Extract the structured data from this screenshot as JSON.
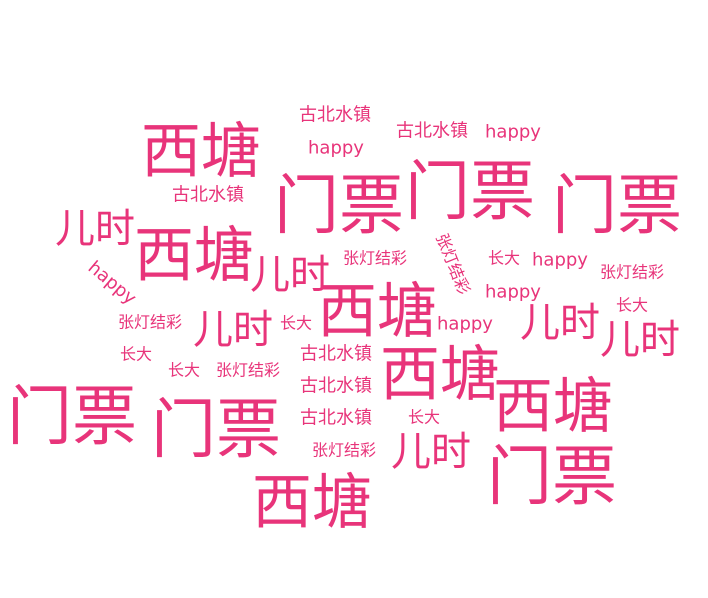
{
  "chart_data": {
    "type": "wordcloud",
    "color": "#e8347a",
    "words": [
      {
        "text": "西塘",
        "weight": 60
      },
      {
        "text": "西塘",
        "weight": 60
      },
      {
        "text": "西塘",
        "weight": 60
      },
      {
        "text": "西塘",
        "weight": 60
      },
      {
        "text": "西塘",
        "weight": 60
      },
      {
        "text": "西塘",
        "weight": 60
      },
      {
        "text": "门票",
        "weight": 65
      },
      {
        "text": "门票",
        "weight": 65
      },
      {
        "text": "门票",
        "weight": 65
      },
      {
        "text": "门票",
        "weight": 65
      },
      {
        "text": "门票",
        "weight": 65
      },
      {
        "text": "门票",
        "weight": 65
      },
      {
        "text": "儿时",
        "weight": 40
      },
      {
        "text": "儿时",
        "weight": 40
      },
      {
        "text": "儿时",
        "weight": 40
      },
      {
        "text": "儿时",
        "weight": 40
      },
      {
        "text": "儿时",
        "weight": 40
      },
      {
        "text": "儿时",
        "weight": 40
      },
      {
        "text": "古北水镇",
        "weight": 18
      },
      {
        "text": "古北水镇",
        "weight": 18
      },
      {
        "text": "古北水镇",
        "weight": 18
      },
      {
        "text": "古北水镇",
        "weight": 18
      },
      {
        "text": "古北水镇",
        "weight": 18
      },
      {
        "text": "古北水镇",
        "weight": 18
      },
      {
        "text": "happy",
        "weight": 18
      },
      {
        "text": "happy",
        "weight": 18
      },
      {
        "text": "happy",
        "weight": 18
      },
      {
        "text": "happy",
        "weight": 18
      },
      {
        "text": "happy",
        "weight": 18
      },
      {
        "text": "happy",
        "weight": 18
      },
      {
        "text": "张灯结彩",
        "weight": 16
      },
      {
        "text": "张灯结彩",
        "weight": 16
      },
      {
        "text": "张灯结彩",
        "weight": 16
      },
      {
        "text": "张灯结彩",
        "weight": 16
      },
      {
        "text": "张灯结彩",
        "weight": 16
      },
      {
        "text": "张灯结彩",
        "weight": 16
      },
      {
        "text": "长大",
        "weight": 16
      },
      {
        "text": "长大",
        "weight": 16
      },
      {
        "text": "长大",
        "weight": 16
      },
      {
        "text": "长大",
        "weight": 16
      },
      {
        "text": "长大",
        "weight": 16
      },
      {
        "text": "长大",
        "weight": 16
      }
    ]
  }
}
